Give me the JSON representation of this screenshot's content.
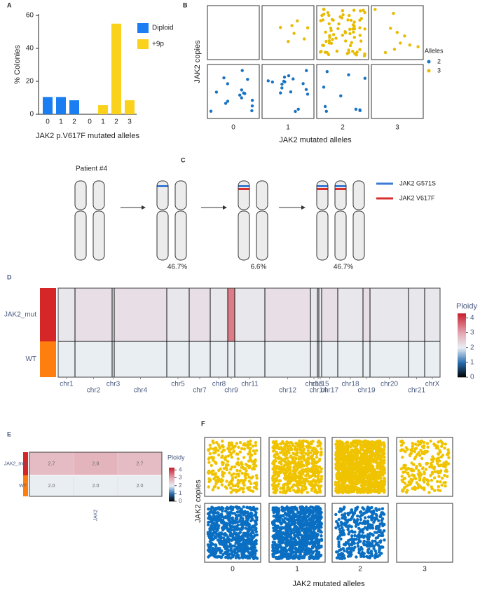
{
  "chart_data": [
    {
      "panel_label": "A",
      "type": "bar",
      "categories": [
        "0",
        "1",
        "2",
        "0",
        "1",
        "2",
        "3"
      ],
      "series": [
        {
          "name": "Diploid",
          "color": "#1a7ef2",
          "values": [
            10.5,
            10.5,
            8.5,
            null,
            null,
            null,
            null
          ]
        },
        {
          "name": "+9p",
          "color": "#fad11b",
          "values": [
            null,
            null,
            null,
            0,
            5.5,
            55,
            8.5
          ]
        }
      ],
      "ylim": [
        0,
        60
      ],
      "yticks": [
        0,
        20,
        40,
        60
      ],
      "xlabel": "JAK2 p.V617F mutated alleles",
      "ylabel": "% Colonies"
    },
    {
      "panel_label": "B",
      "type": "jitter",
      "categories": [
        "0",
        "1",
        "2",
        "3"
      ],
      "legend_title": "Alleles",
      "series": [
        {
          "name": "2",
          "color": "#1a73c2",
          "values": [
            16,
            17,
            10,
            0
          ]
        },
        {
          "name": "3",
          "color": "#e7bb00",
          "values": [
            0,
            7,
            75,
            10
          ]
        }
      ],
      "xlabel": "JAK2 mutated alleles",
      "ylabel": "JAK2 copies"
    },
    {
      "panel_label": "D",
      "type": "heatmap",
      "rows": [
        "JAK2_mut",
        "WT"
      ],
      "row_colors": [
        "#d62728",
        "#ff7f0e"
      ],
      "columns": [
        "chr1",
        "chr2",
        "chr3",
        "chr4",
        "chr5",
        "chr7",
        "chr8",
        "chr9",
        "chr11",
        "chr12",
        "chr13",
        "chr14",
        "chr15",
        "chr17",
        "chr18",
        "chr19",
        "chr20",
        "chr21",
        "chrX"
      ],
      "column_sizes": [
        24,
        53,
        3,
        75,
        32,
        30,
        25,
        10,
        43,
        65,
        10,
        2,
        4,
        23,
        36,
        10,
        55,
        23,
        22
      ],
      "values": [
        [
          2.1,
          2.2,
          2.1,
          2.2,
          2.1,
          2.2,
          2.1,
          3.4,
          2.1,
          2.2,
          2.1,
          2.1,
          2.1,
          2.2,
          2.1,
          2.2,
          2.1,
          2.1,
          2.1
        ],
        [
          2,
          2,
          2,
          2,
          2,
          2,
          2,
          2,
          2,
          2,
          2,
          2,
          2,
          2,
          2,
          2,
          2,
          2,
          2
        ]
      ],
      "legend_title": "Ploidy",
      "clim": [
        0,
        4.3
      ],
      "ticks": [
        0,
        1,
        2,
        3,
        4
      ],
      "color_stops": [
        {
          "value": 0,
          "color": "#000000"
        },
        {
          "value": 1,
          "color": "#2a6fb0"
        },
        {
          "value": 2,
          "color": "#e9eef3"
        },
        {
          "value": 3,
          "color": "#e3a5b0"
        },
        {
          "value": 4.3,
          "color": "#c8202e"
        }
      ]
    },
    {
      "panel_label": "E",
      "type": "heatmap",
      "rows": [
        "JAK2_mut",
        "WT"
      ],
      "row_colors": [
        "#d62728",
        "#ff7f0e"
      ],
      "xlabel": "JAK2",
      "values": [
        [
          2.7,
          2.8,
          2.7
        ],
        [
          2,
          2,
          2
        ]
      ],
      "value_labels": [
        [
          "2.7",
          "2.8",
          "2.7"
        ],
        [
          "2.0",
          "2.0",
          "2.0"
        ]
      ],
      "legend_title": "Ploidy",
      "clim": [
        0,
        4.3
      ],
      "ticks": [
        0,
        1,
        2,
        3,
        4
      ],
      "color_stops": [
        {
          "value": 0,
          "color": "#000000"
        },
        {
          "value": 1,
          "color": "#2a6fb0"
        },
        {
          "value": 2,
          "color": "#e9eef3"
        },
        {
          "value": 3,
          "color": "#e3a5b0"
        },
        {
          "value": 4.3,
          "color": "#c8202e"
        }
      ]
    },
    {
      "panel_label": "F",
      "type": "jitter",
      "categories": [
        "0",
        "1",
        "2",
        "3"
      ],
      "series": [
        {
          "name": "2",
          "color": "#0a6fc2",
          "values": [
            700,
            900,
            350,
            0
          ]
        },
        {
          "name": "3",
          "color": "#f0c300",
          "values": [
            250,
            550,
            1100,
            230
          ]
        }
      ],
      "xlabel": "JAK2 mutated alleles",
      "ylabel": "JAK2 copies"
    }
  ],
  "diagram": {
    "panel_label": "C",
    "title": "Patient #4",
    "legend": [
      {
        "label": "JAK2 G571S",
        "color": "#3a7bd5"
      },
      {
        "label": "JAK2 V617F",
        "color": "#d93030"
      }
    ],
    "percentages": [
      "46.7%",
      "6.6%",
      "46.7%"
    ]
  }
}
